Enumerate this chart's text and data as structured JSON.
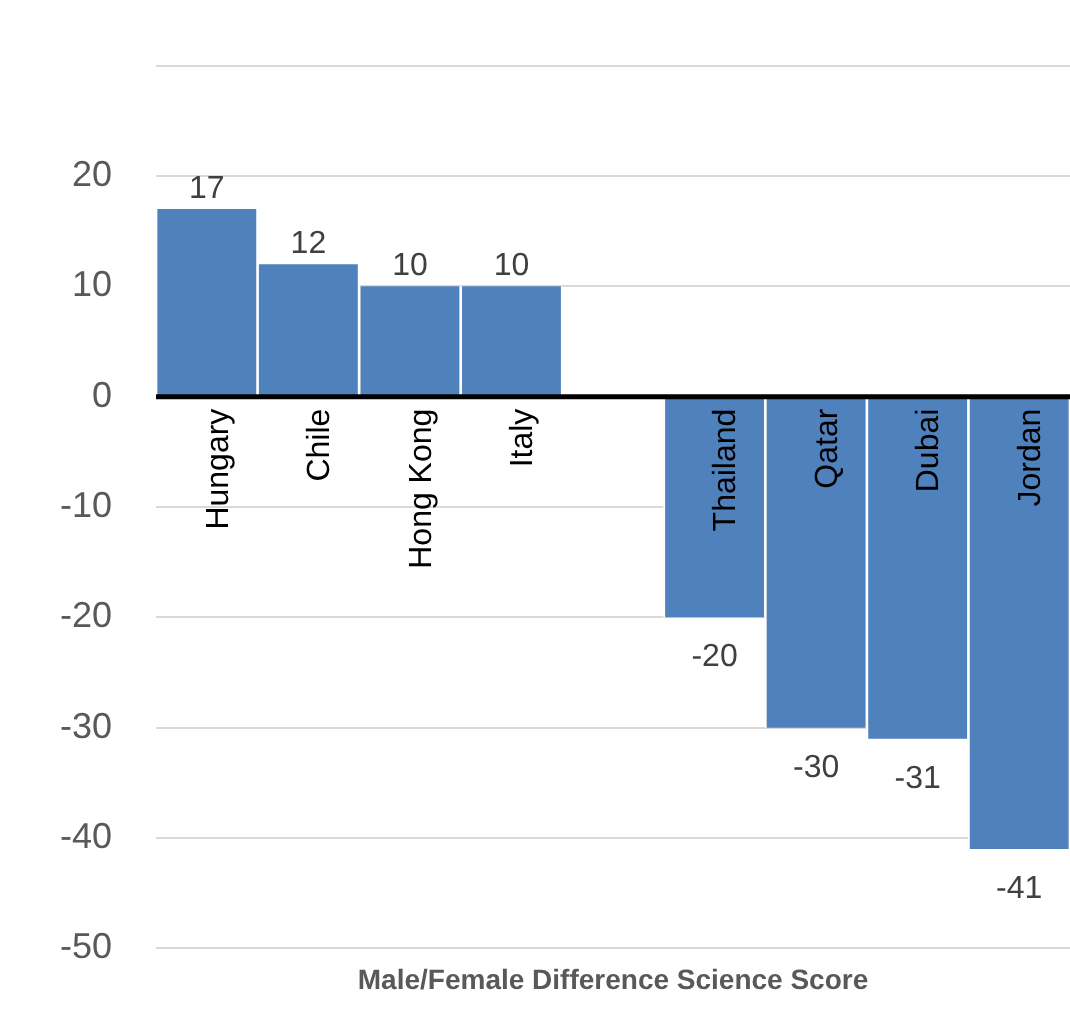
{
  "chart_data": {
    "type": "bar",
    "xlabel": "Male/Female Difference Science Score",
    "categories": [
      "Hungary",
      "Chile",
      "Hong Kong",
      "Italy",
      null,
      "Thailand",
      "Qatar",
      "Dubai",
      "Jordan"
    ],
    "values": [
      17,
      12,
      10,
      10,
      null,
      -20,
      -30,
      -31,
      -41
    ],
    "color": "#4f81bd",
    "ylim": [
      -50,
      30
    ],
    "yticks": [
      -50,
      -40,
      -30,
      -20,
      -10,
      0,
      10,
      20,
      {
        "value": 30,
        "label": null
      }
    ],
    "grid": "y",
    "data_labels": true,
    "legend": false
  }
}
